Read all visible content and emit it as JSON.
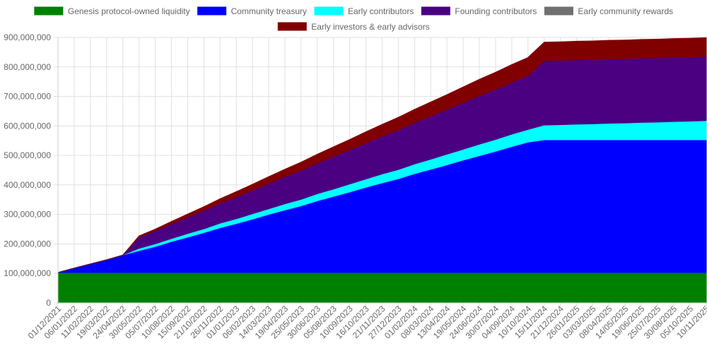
{
  "chart_data": {
    "type": "area",
    "stacked": true,
    "grid": true,
    "legend_position": "top",
    "xlabel": "",
    "ylabel": "",
    "ylim": [
      0,
      900000000
    ],
    "y_ticks": [
      0,
      100000000,
      200000000,
      300000000,
      400000000,
      500000000,
      600000000,
      700000000,
      800000000,
      900000000
    ],
    "y_tick_labels": [
      "0",
      "100,000,000",
      "200,000,000",
      "300,000,000",
      "400,000,000",
      "500,000,000",
      "600,000,000",
      "700,000,000",
      "800,000,000",
      "900,000,000"
    ],
    "x": [
      "01/12/2021",
      "06/01/2022",
      "11/02/2022",
      "19/03/2022",
      "24/04/2022",
      "30/05/2022",
      "05/07/2022",
      "10/08/2022",
      "15/09/2022",
      "21/10/2022",
      "26/11/2022",
      "01/01/2023",
      "06/02/2023",
      "14/03/2023",
      "19/04/2023",
      "25/05/2023",
      "30/06/2023",
      "05/08/2023",
      "10/09/2023",
      "16/10/2023",
      "21/11/2023",
      "27/12/2023",
      "01/02/2024",
      "08/03/2024",
      "13/04/2024",
      "19/05/2024",
      "24/06/2024",
      "30/07/2024",
      "04/09/2024",
      "10/10/2024",
      "15/11/2024",
      "21/12/2024",
      "26/01/2025",
      "03/03/2025",
      "08/04/2025",
      "14/05/2025",
      "19/06/2025",
      "25/07/2025",
      "30/08/2025",
      "05/10/2025",
      "10/11/2025"
    ],
    "series": [
      {
        "name": "Genesis protocol-owned liquidity",
        "color": "#008000",
        "values": [
          103000000,
          103000000,
          103000000,
          103000000,
          103000000,
          103000000,
          103000000,
          103000000,
          103000000,
          103000000,
          103000000,
          103000000,
          103000000,
          103000000,
          103000000,
          103000000,
          103000000,
          103000000,
          103000000,
          103000000,
          103000000,
          103000000,
          103000000,
          103000000,
          103000000,
          103000000,
          103000000,
          103000000,
          103000000,
          103000000,
          103000000,
          103000000,
          103000000,
          103000000,
          103000000,
          103000000,
          103000000,
          103000000,
          103000000,
          103000000,
          103000000
        ]
      },
      {
        "name": "Community treasury",
        "color": "#0000ff",
        "values": [
          0,
          15000000,
          29000000,
          43000000,
          59000000,
          74000000,
          88000000,
          105000000,
          120000000,
          135000000,
          152000000,
          166000000,
          181000000,
          197000000,
          212000000,
          226000000,
          243000000,
          258000000,
          273000000,
          289000000,
          304000000,
          318000000,
          335000000,
          350000000,
          365000000,
          381000000,
          396000000,
          411000000,
          427000000,
          442000000,
          450000000,
          450000000,
          450000000,
          450000000,
          450000000,
          450000000,
          450000000,
          450000000,
          450000000,
          450000000,
          450000000
        ]
      },
      {
        "name": "Early contributors",
        "color": "#00ffff",
        "values": [
          0,
          0,
          0,
          0,
          0,
          8000000,
          9000000,
          10000000,
          12000000,
          13000000,
          15000000,
          16000000,
          18000000,
          19000000,
          21000000,
          22000000,
          24000000,
          25000000,
          27000000,
          28000000,
          30000000,
          31000000,
          33000000,
          34000000,
          36000000,
          37000000,
          39000000,
          40000000,
          42000000,
          43000000,
          50000000,
          51000000,
          53000000,
          54000000,
          56000000,
          57000000,
          59000000,
          60000000,
          62000000,
          63000000,
          65000000
        ]
      },
      {
        "name": "Founding contributors",
        "color": "#4b0082",
        "values": [
          0,
          0,
          0,
          0,
          0,
          38000000,
          44000000,
          50000000,
          56000000,
          62000000,
          68000000,
          74000000,
          80000000,
          86000000,
          92000000,
          98000000,
          104000000,
          110000000,
          116000000,
          122000000,
          128000000,
          134000000,
          140000000,
          146000000,
          152000000,
          158000000,
          164000000,
          170000000,
          176000000,
          182000000,
          218000000,
          218000000,
          218000000,
          218000000,
          218000000,
          218000000,
          218000000,
          218000000,
          218000000,
          218000000,
          218000000
        ]
      },
      {
        "name": "Early community rewards",
        "color": "#707070",
        "values": [
          0,
          0,
          0,
          0,
          0,
          0,
          0,
          0,
          0,
          0,
          0,
          0,
          0,
          0,
          0,
          0,
          0,
          0,
          0,
          0,
          0,
          0,
          0,
          0,
          0,
          0,
          0,
          0,
          0,
          0,
          0,
          0,
          0,
          0,
          0,
          0,
          0,
          0,
          0,
          0,
          0
        ]
      },
      {
        "name": "Early investors & early advisors",
        "color": "#800000",
        "values": [
          0,
          0,
          0,
          0,
          0,
          4000000,
          6000000,
          8000000,
          10000000,
          13000000,
          15000000,
          18000000,
          20000000,
          23000000,
          25000000,
          28000000,
          30000000,
          33000000,
          35000000,
          38000000,
          40000000,
          43000000,
          45000000,
          48000000,
          50000000,
          53000000,
          56000000,
          58000000,
          60000000,
          62000000,
          63000000,
          63000000,
          63000000,
          63000000,
          63000000,
          63000000,
          63000000,
          63000000,
          63000000,
          63000000,
          63000000
        ]
      }
    ]
  }
}
